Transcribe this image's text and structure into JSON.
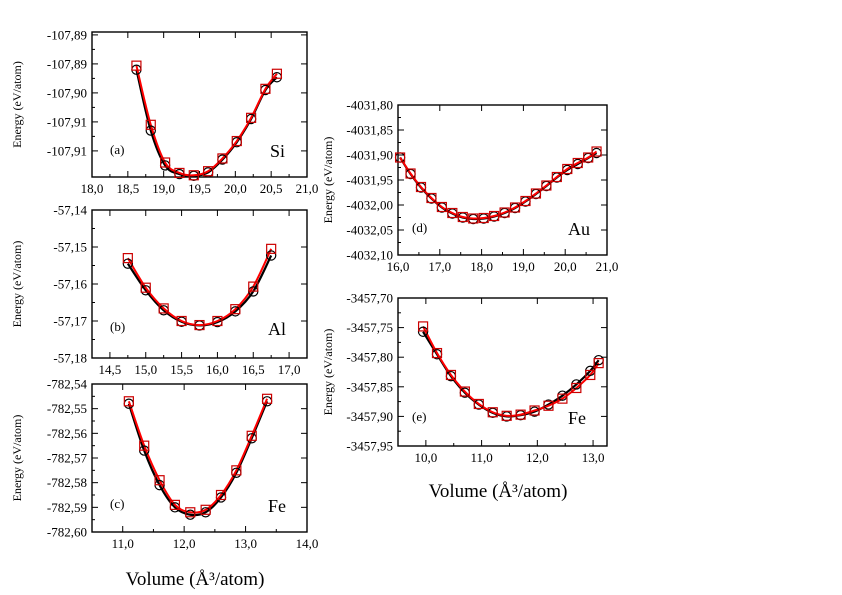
{
  "figure": {
    "left_xlabel": "Volume (Å³/atom)",
    "right_xlabel": "Volume (Å³/atom)",
    "colors": {
      "black_series": "#000000",
      "red_series": "#ff0000",
      "square_marker": "#cc0000"
    }
  },
  "chart_data": [
    {
      "id": "si",
      "type": "scatter",
      "panel_label": "(a)",
      "element": "Si",
      "ylabel": "Energy (eV/atom)",
      "xlim": [
        18.0,
        21.0
      ],
      "ylim": [
        -107.912,
        -107.887
      ],
      "xticks": [
        "18,0",
        "18,5",
        "19,0",
        "19,5",
        "20,0",
        "20,5",
        "21,0"
      ],
      "yticks": [
        "-107,89",
        "-107,89",
        "-107,90",
        "-107,91",
        "-107,91"
      ],
      "ytick_values": [
        -107.8875,
        -107.8925,
        -107.8975,
        -107.9025,
        -107.9075
      ],
      "x": [
        18.62,
        18.82,
        19.02,
        19.22,
        19.42,
        19.62,
        19.82,
        20.02,
        20.22,
        20.42,
        20.58
      ],
      "series": [
        {
          "name": "black",
          "marker": "circle",
          "values": [
            -107.8935,
            -107.904,
            -107.91,
            -107.9115,
            -107.9118,
            -107.9112,
            -107.909,
            -107.906,
            -107.902,
            -107.897,
            -107.8948
          ]
        },
        {
          "name": "red",
          "marker": "square",
          "values": [
            -107.8928,
            -107.903,
            -107.9095,
            -107.9113,
            -107.9117,
            -107.911,
            -107.9088,
            -107.9058,
            -107.9018,
            -107.8968,
            -107.8942
          ]
        }
      ]
    },
    {
      "id": "al",
      "type": "scatter",
      "panel_label": "(b)",
      "element": "Al",
      "ylabel": "Energy (eV/atom)",
      "xlim": [
        14.25,
        17.25
      ],
      "ylim": [
        -57.18,
        -57.14
      ],
      "xticks": [
        "14,5",
        "15,0",
        "15,5",
        "16,0",
        "16,5",
        "17,0"
      ],
      "xtick_values": [
        14.5,
        15.0,
        15.5,
        16.0,
        16.5,
        17.0
      ],
      "yticks": [
        "-57,14",
        "-57,15",
        "-57,16",
        "-57,17",
        "-57,18"
      ],
      "ytick_values": [
        -57.14,
        -57.15,
        -57.16,
        -57.17,
        -57.18
      ],
      "x": [
        14.75,
        15.0,
        15.25,
        15.5,
        15.75,
        16.0,
        16.25,
        16.5,
        16.75
      ],
      "series": [
        {
          "name": "black",
          "marker": "circle",
          "values": [
            -57.1545,
            -57.1617,
            -57.1671,
            -57.1702,
            -57.1712,
            -57.1703,
            -57.1674,
            -57.162,
            -57.1523
          ]
        },
        {
          "name": "red",
          "marker": "square",
          "values": [
            -57.153,
            -57.161,
            -57.1666,
            -57.17,
            -57.1711,
            -57.17,
            -57.1668,
            -57.1607,
            -57.1505
          ]
        }
      ]
    },
    {
      "id": "fe1",
      "type": "scatter",
      "panel_label": "(c)",
      "element": "Fe",
      "ylabel": "Energy (eV/atom)",
      "xlim": [
        10.5,
        14.0
      ],
      "ylim": [
        -782.6,
        -782.54
      ],
      "xticks": [
        "11,0",
        "12,0",
        "13,0",
        "14,0"
      ],
      "xtick_values": [
        11.0,
        12.0,
        13.0,
        14.0
      ],
      "yticks": [
        "-782,54",
        "-782,55",
        "-782,56",
        "-782,57",
        "-782,58",
        "-782,59",
        "-782,60"
      ],
      "ytick_values": [
        -782.54,
        -782.55,
        -782.56,
        -782.57,
        -782.58,
        -782.59,
        -782.6
      ],
      "x": [
        11.1,
        11.35,
        11.6,
        11.85,
        12.1,
        12.35,
        12.6,
        12.85,
        13.1,
        13.35
      ],
      "series": [
        {
          "name": "black",
          "marker": "circle",
          "values": [
            -782.548,
            -782.567,
            -782.581,
            -782.59,
            -782.593,
            -782.592,
            -782.586,
            -782.576,
            -782.562,
            -782.547
          ]
        },
        {
          "name": "red",
          "marker": "square",
          "values": [
            -782.547,
            -782.565,
            -782.579,
            -782.589,
            -782.592,
            -782.591,
            -782.585,
            -782.575,
            -782.561,
            -782.546
          ]
        }
      ]
    },
    {
      "id": "au",
      "type": "scatter",
      "panel_label": "(d)",
      "element": "Au",
      "ylabel": "Energy (eV/atom)",
      "xlim": [
        16.0,
        21.0
      ],
      "ylim": [
        -4032.1,
        -4031.8
      ],
      "xticks": [
        "16,0",
        "17,0",
        "18,0",
        "19,0",
        "20,0",
        "21,0"
      ],
      "xtick_values": [
        16.0,
        17.0,
        18.0,
        19.0,
        20.0,
        21.0
      ],
      "yticks": [
        "-4031,80",
        "-4031,85",
        "-4031,90",
        "-4031,95",
        "-4032,00",
        "-4032,05",
        "-4032,10"
      ],
      "ytick_values": [
        -4031.8,
        -4031.85,
        -4031.9,
        -4031.95,
        -4032.0,
        -4032.05,
        -4032.1
      ],
      "x": [
        16.05,
        16.3,
        16.55,
        16.8,
        17.05,
        17.3,
        17.55,
        17.8,
        18.05,
        18.3,
        18.55,
        18.8,
        19.05,
        19.3,
        19.55,
        19.8,
        20.05,
        20.3,
        20.55,
        20.75
      ],
      "series": [
        {
          "name": "black",
          "marker": "circle",
          "values": [
            -4031.905,
            -4031.938,
            -4031.965,
            -4031.987,
            -4032.005,
            -4032.017,
            -4032.025,
            -4032.028,
            -4032.027,
            -4032.023,
            -4032.016,
            -4032.006,
            -4031.993,
            -4031.978,
            -4031.962,
            -4031.945,
            -4031.93,
            -4031.918,
            -4031.906,
            -4031.896
          ]
        },
        {
          "name": "red",
          "marker": "square",
          "values": [
            -4031.905,
            -4031.937,
            -4031.964,
            -4031.986,
            -4032.004,
            -4032.016,
            -4032.024,
            -4032.027,
            -4032.026,
            -4032.022,
            -4032.015,
            -4032.005,
            -4031.992,
            -4031.977,
            -4031.961,
            -4031.944,
            -4031.928,
            -4031.916,
            -4031.905,
            -4031.893
          ]
        }
      ]
    },
    {
      "id": "fe2",
      "type": "scatter",
      "panel_label": "(e)",
      "element": "Fe",
      "ylabel": "Energy (eV/atom)",
      "xlim": [
        9.5,
        13.25
      ],
      "ylim": [
        -3457.95,
        -3457.7
      ],
      "xticks": [
        "10,0",
        "11,0",
        "12,0",
        "13,0"
      ],
      "xtick_values": [
        10.0,
        11.0,
        12.0,
        13.0
      ],
      "yticks": [
        "-3457,70",
        "-3457,75",
        "-3457,80",
        "-3457,85",
        "-3457,90",
        "-3457,95"
      ],
      "ytick_values": [
        -3457.7,
        -3457.75,
        -3457.8,
        -3457.85,
        -3457.9,
        -3457.95
      ],
      "x": [
        9.95,
        10.2,
        10.45,
        10.7,
        10.95,
        11.2,
        11.45,
        11.7,
        11.95,
        12.2,
        12.45,
        12.7,
        12.95,
        13.1
      ],
      "series": [
        {
          "name": "black",
          "marker": "circle",
          "values": [
            -3457.757,
            -3457.795,
            -3457.832,
            -3457.86,
            -3457.88,
            -3457.894,
            -3457.9,
            -3457.898,
            -3457.892,
            -3457.88,
            -3457.865,
            -3457.846,
            -3457.823,
            -3457.805
          ]
        },
        {
          "name": "red",
          "marker": "square",
          "values": [
            -3457.748,
            -3457.793,
            -3457.83,
            -3457.858,
            -3457.879,
            -3457.893,
            -3457.899,
            -3457.897,
            -3457.89,
            -3457.882,
            -3457.87,
            -3457.852,
            -3457.83,
            -3457.81
          ]
        }
      ]
    }
  ]
}
